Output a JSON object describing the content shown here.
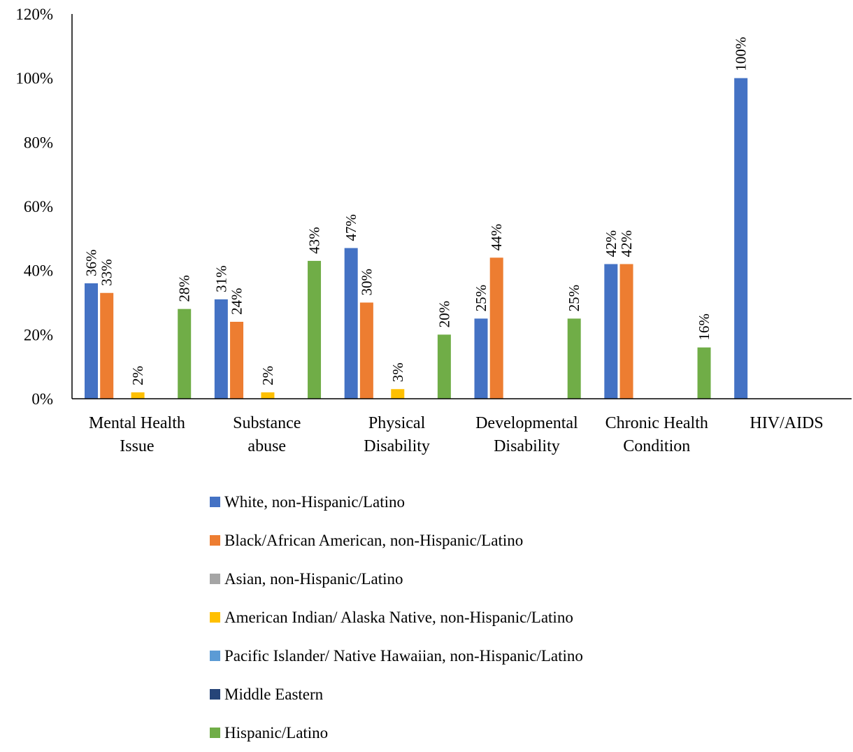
{
  "chart_data": {
    "type": "bar",
    "categories": [
      [
        "Mental Health",
        "Issue"
      ],
      [
        "Substance",
        "abuse"
      ],
      [
        "Physical",
        "Disability"
      ],
      [
        "Developmental",
        "Disability"
      ],
      [
        "Chronic Health",
        "Condition"
      ],
      [
        "HIV/AIDS"
      ]
    ],
    "series": [
      {
        "name": "White, non-Hispanic/Latino",
        "color": "#4472C4",
        "values": [
          36,
          31,
          47,
          25,
          42,
          100
        ]
      },
      {
        "name": "Black/African American, non-Hispanic/Latino",
        "color": "#ED7D31",
        "values": [
          33,
          24,
          30,
          44,
          42,
          null
        ]
      },
      {
        "name": "Asian, non-Hispanic/Latino",
        "color": "#A5A5A5",
        "values": [
          null,
          null,
          null,
          null,
          null,
          null
        ]
      },
      {
        "name": "American Indian/ Alaska Native, non-Hispanic/Latino",
        "color": "#FFC000",
        "values": [
          2,
          2,
          3,
          null,
          null,
          null
        ]
      },
      {
        "name": "Pacific Islander/ Native Hawaiian, non-Hispanic/Latino",
        "color": "#5B9BD5",
        "values": [
          null,
          null,
          null,
          null,
          null,
          null
        ]
      },
      {
        "name": "Middle Eastern",
        "color": "#264478",
        "values": [
          null,
          null,
          null,
          null,
          null,
          null
        ]
      },
      {
        "name": "Hispanic/Latino",
        "color": "#70AD47",
        "values": [
          28,
          43,
          20,
          25,
          16,
          null
        ]
      }
    ],
    "y_ticks": [
      "0%",
      "20%",
      "40%",
      "60%",
      "80%",
      "100%",
      "120%"
    ],
    "ylim": [
      0,
      120
    ],
    "value_suffix": "%",
    "legend_position": "bottom",
    "grid": false
  }
}
